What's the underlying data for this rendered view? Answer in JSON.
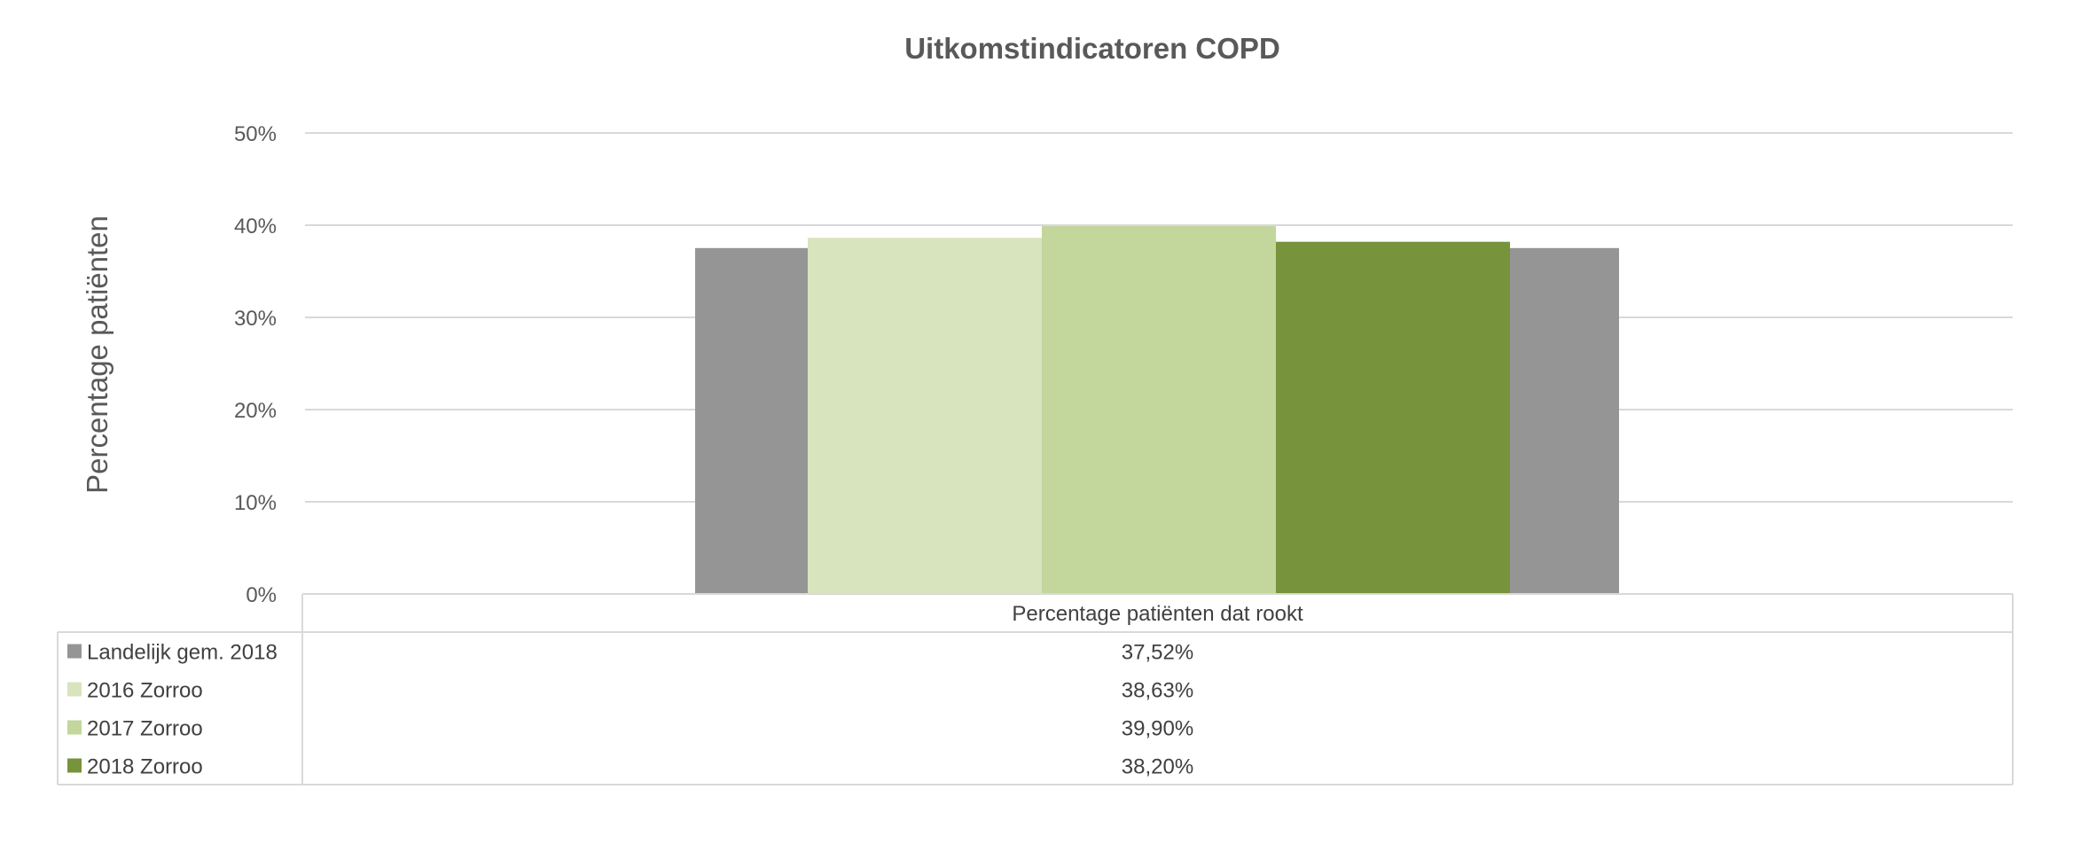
{
  "chart_data": {
    "type": "bar",
    "title": "Uitkomstindicatoren COPD",
    "ylabel": "Percentage patiënten",
    "xlabel": "",
    "categories": [
      "Percentage patiënten dat rookt"
    ],
    "ylim": [
      0,
      50
    ],
    "yticks": [
      0,
      10,
      20,
      30,
      40,
      50
    ],
    "ytick_labels": [
      "0%",
      "10%",
      "20%",
      "30%",
      "40%",
      "50%"
    ],
    "grid": true,
    "legend": "data-table",
    "series": [
      {
        "name": "Landelijk gem. 2018",
        "values": [
          37.52
        ],
        "label": "37,52%",
        "color": "#959595",
        "layout": "background"
      },
      {
        "name": "2016 Zorroo",
        "values": [
          38.63
        ],
        "label": "38,63%",
        "color": "#d8e4bd"
      },
      {
        "name": "2017 Zorroo",
        "values": [
          39.9
        ],
        "label": "39,90%",
        "color": "#c3d69b"
      },
      {
        "name": "2018 Zorroo",
        "values": [
          38.2
        ],
        "label": "38,20%",
        "color": "#77933c"
      }
    ]
  }
}
